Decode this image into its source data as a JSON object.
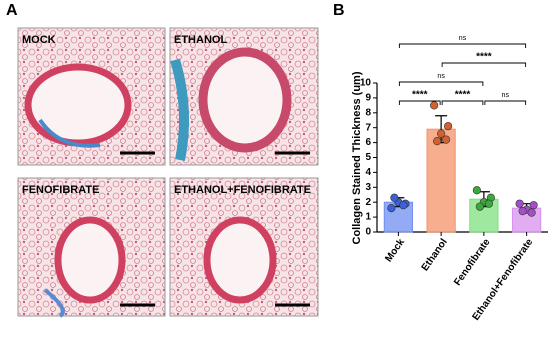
{
  "panel_labels": [
    "A",
    "B"
  ],
  "image_labels": [
    "MOCK",
    "ETHANOL",
    "FENOFIBRATE",
    "ETHANOL+FENOFIBRATE"
  ],
  "chart_data": {
    "type": "bar",
    "y_label": "Collagen Stained Thickness (um)",
    "categories": [
      "Mock",
      "Ethanol",
      "Fenofibrate",
      "Ethanol+Fenofibrate"
    ],
    "values": [
      2.0,
      6.9,
      2.2,
      1.6
    ],
    "errors": [
      0.3,
      0.9,
      0.5,
      0.3
    ],
    "colors": [
      "#6f8ff0",
      "#f4936a",
      "#7fe07f",
      "#d890ee"
    ],
    "point_colors": [
      "#3d5fd8",
      "#d4622e",
      "#3aaa3a",
      "#a44fc8"
    ],
    "points": [
      [
        1.6,
        1.9,
        2.0,
        2.3,
        1.8
      ],
      [
        8.5,
        7.1,
        6.6,
        6.1,
        6.2
      ],
      [
        2.8,
        2.3,
        2.0,
        1.7,
        1.9
      ],
      [
        1.9,
        1.8,
        1.5,
        1.4,
        1.3
      ]
    ],
    "ylim": [
      0,
      10
    ],
    "yticks": [
      0,
      1,
      2,
      3,
      4,
      5,
      6,
      7,
      8,
      9,
      10
    ],
    "comparisons": [
      {
        "pair": [
          0,
          1
        ],
        "label": "****"
      },
      {
        "pair": [
          1,
          2
        ],
        "label": "****"
      },
      {
        "pair": [
          2,
          3
        ],
        "label": "ns"
      },
      {
        "pair": [
          0,
          2
        ],
        "label": "ns"
      },
      {
        "pair": [
          1,
          3
        ],
        "label": "****"
      },
      {
        "pair": [
          0,
          3
        ],
        "label": "ns"
      }
    ]
  }
}
